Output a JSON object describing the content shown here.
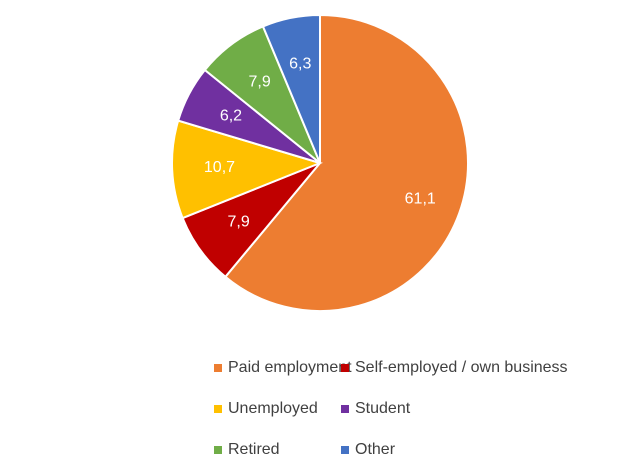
{
  "chart_data": {
    "type": "pie",
    "categories": [
      "Paid employment",
      "Self-employed / own business",
      "Unemployed",
      "Student",
      "Retired",
      "Other"
    ],
    "values": [
      61.1,
      7.9,
      10.7,
      6.2,
      7.9,
      6.3
    ],
    "value_labels": [
      "61,1",
      "7,9",
      "10,7",
      "6,2",
      "7,9",
      "6,3"
    ],
    "colors": [
      "#ed7d31",
      "#c00000",
      "#ffc000",
      "#7030a0",
      "#70ad47",
      "#4472c4"
    ],
    "legend": "bottom"
  }
}
